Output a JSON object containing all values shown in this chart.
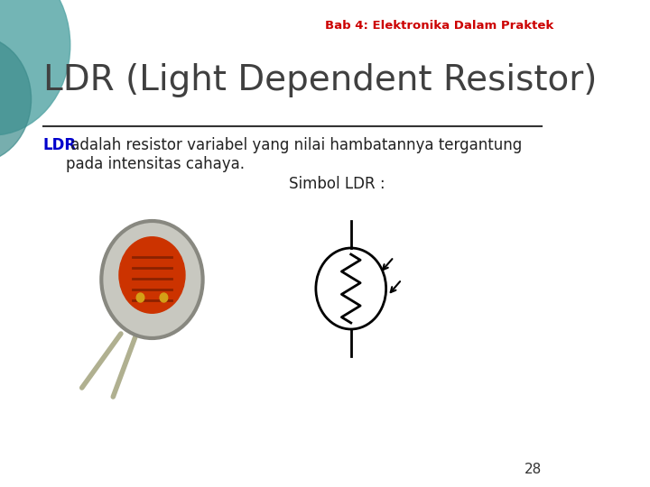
{
  "header_text": "Bab 4: Elektronika Dalam Praktek",
  "header_color": "#CC0000",
  "title_text": "LDR (Light Dependent Resistor)",
  "title_color": "#404040",
  "ldr_bold": "LDR",
  "ldr_bold_color": "#0000CC",
  "body_text": " adalah resistor variabel yang nilai hambatannya tergantung\npada intensitas cahaya.",
  "body_color": "#222222",
  "simbol_text": "Simbol LDR :",
  "simbol_color": "#222222",
  "page_number": "28",
  "bg_color": "#FFFFFF",
  "line_color": "#444444",
  "circle_bg": "#4a9a9a",
  "font_family": "Arial"
}
